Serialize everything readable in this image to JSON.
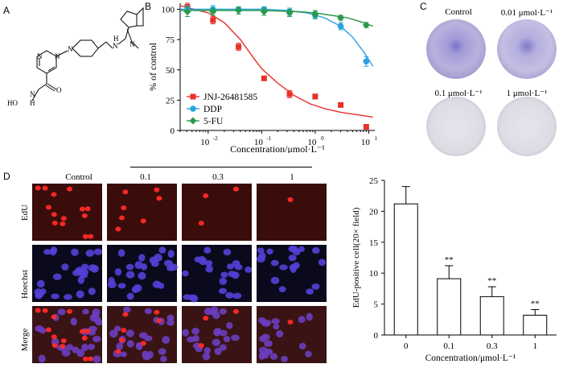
{
  "panels": {
    "A": {
      "letter": "A",
      "atoms": {
        "hydroxyl": "HO",
        "amide_n": "N",
        "amide_h": "H",
        "carbonyl_o": "O",
        "amine": "N",
        "amine_h": "H",
        "pyr_n1": "N",
        "pyr_n2": "N",
        "pip_n": "N",
        "indole_n": "N"
      }
    },
    "B": {
      "letter": "B"
    },
    "C": {
      "letter": "C",
      "dish_labels": [
        "Control",
        "0.01 μmol·L⁻¹",
        "0.1 μmol·L⁻¹",
        "1 μmol·L⁻¹"
      ]
    },
    "D": {
      "letter": "D",
      "col_headers": [
        "Control",
        "0.1",
        "0.3",
        "1"
      ],
      "row_headers": [
        "EdU",
        "Hoechst",
        "Merge"
      ]
    }
  },
  "chart_data": [
    {
      "type": "scatter",
      "panel": "B",
      "ylabel": "% of control",
      "xlabel": "Concentration/μmol·L⁻¹",
      "xscale": "log",
      "xlim": [
        0.003,
        13
      ],
      "ylim": [
        0,
        105
      ],
      "yticks": [
        0,
        25,
        50,
        75,
        100
      ],
      "xticks": [
        0.01,
        0.1,
        1,
        10
      ],
      "xtick_labels": [
        {
          "base": "10",
          "exp": "-2"
        },
        {
          "base": "10",
          "exp": "-1"
        },
        {
          "base": "10",
          "exp": "0"
        },
        {
          "base": "10",
          "exp": "1"
        }
      ],
      "legend_position": "bottom-left",
      "series": [
        {
          "name": "JNJ-26481585",
          "color": "#e8312a",
          "marker": "square",
          "x": [
            0.0041,
            0.0123,
            0.037,
            0.111,
            0.333,
            1.0,
            3.0,
            9.0
          ],
          "y": [
            102,
            91,
            69,
            43,
            30,
            28,
            21,
            3
          ],
          "err": [
            3,
            3,
            3,
            0,
            3,
            2,
            0,
            0
          ],
          "fit": [
            [
              0.003,
              103
            ],
            [
              0.01,
              97
            ],
            [
              0.02,
              89
            ],
            [
              0.04,
              75
            ],
            [
              0.07,
              60
            ],
            [
              0.1,
              51
            ],
            [
              0.2,
              39
            ],
            [
              0.4,
              29
            ],
            [
              0.8,
              22
            ],
            [
              1.5,
              18
            ],
            [
              3,
              15
            ],
            [
              6,
              13
            ],
            [
              12,
              11
            ]
          ]
        },
        {
          "name": "DDP",
          "color": "#2aa2e0",
          "marker": "circle",
          "x": [
            0.0041,
            0.0123,
            0.037,
            0.111,
            0.333,
            1.0,
            3.0,
            9.0
          ],
          "y": [
            100,
            100,
            100,
            100,
            98,
            95,
            86,
            57
          ],
          "err": [
            3,
            3,
            2,
            2,
            3,
            3,
            3,
            4
          ],
          "fit": [
            [
              0.003,
              100
            ],
            [
              0.1,
              100
            ],
            [
              0.3,
              99
            ],
            [
              0.7,
              97
            ],
            [
              1.5,
              93
            ],
            [
              3,
              86
            ],
            [
              5,
              77
            ],
            [
              8,
              65
            ],
            [
              12,
              53
            ]
          ]
        },
        {
          "name": "5-FU",
          "color": "#2a9a4a",
          "marker": "diamond",
          "x": [
            0.0041,
            0.0123,
            0.037,
            0.111,
            0.333,
            1.0,
            3.0,
            9.0
          ],
          "y": [
            98,
            98,
            99,
            98,
            97,
            96,
            93,
            87
          ],
          "err": [
            4,
            3,
            3,
            3,
            3,
            3,
            2,
            2
          ],
          "fit": [
            [
              0.003,
              99
            ],
            [
              0.1,
              99
            ],
            [
              0.5,
              98
            ],
            [
              1,
              97
            ],
            [
              2,
              95
            ],
            [
              4,
              93
            ],
            [
              8,
              89
            ],
            [
              12,
              86
            ]
          ]
        }
      ]
    },
    {
      "type": "bar",
      "panel": "D",
      "ylabel": "EdU-positive cell(20× field)",
      "xlabel": "Concentration/μmol·L⁻¹",
      "categories": [
        "0",
        "0.1",
        "0.3",
        "1"
      ],
      "values": [
        21.2,
        9.1,
        6.2,
        3.2
      ],
      "errors": [
        2.8,
        2.1,
        1.6,
        0.9
      ],
      "significance": [
        "",
        "**",
        "**",
        "**"
      ],
      "ylim": [
        0,
        25
      ],
      "yticks": [
        0,
        5,
        10,
        15,
        20,
        25
      ]
    }
  ]
}
